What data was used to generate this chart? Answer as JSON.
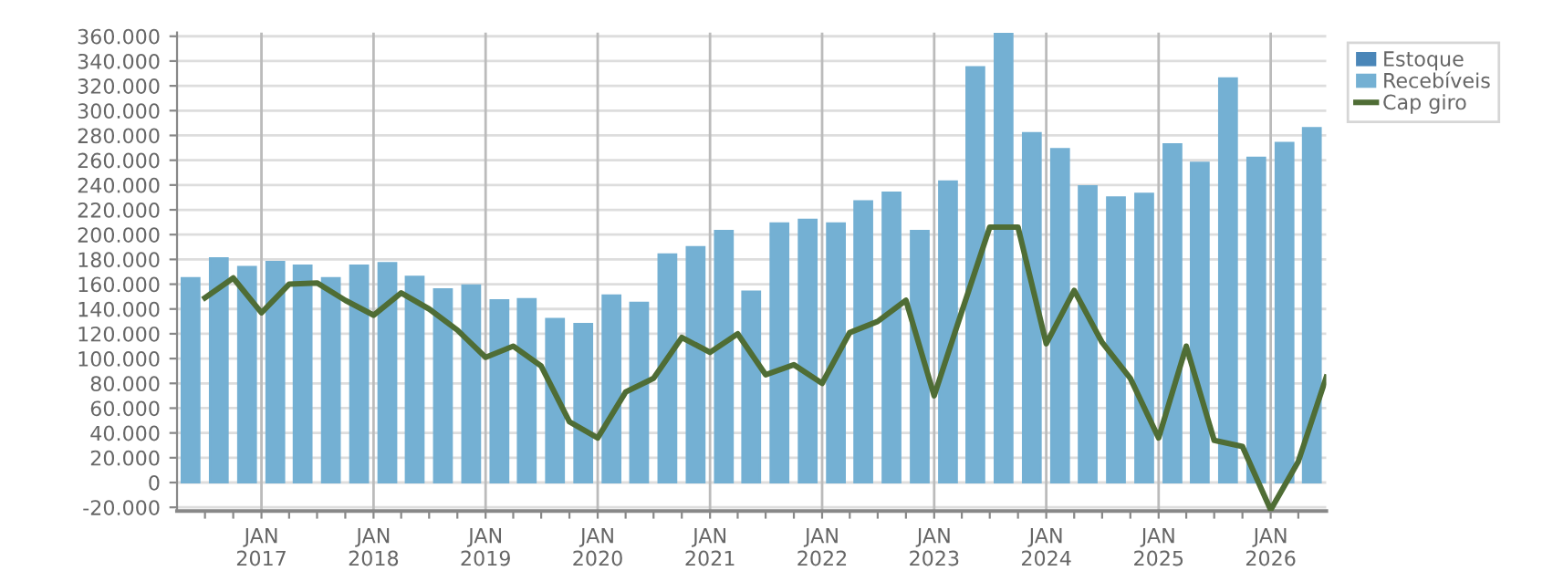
{
  "chart_data": {
    "type": "bar",
    "legend": "top right",
    "grid": true,
    "ylim": [
      -23000,
      363000
    ],
    "yticks": [
      {
        "value": -20000,
        "label": "-20.000"
      },
      {
        "value": 0,
        "label": "0"
      },
      {
        "value": 20000,
        "label": "20.000"
      },
      {
        "value": 40000,
        "label": "40.000"
      },
      {
        "value": 60000,
        "label": "60.000"
      },
      {
        "value": 80000,
        "label": "80.000"
      },
      {
        "value": 100000,
        "label": "100.000"
      },
      {
        "value": 120000,
        "label": "120.000"
      },
      {
        "value": 140000,
        "label": "140.000"
      },
      {
        "value": 160000,
        "label": "160.000"
      },
      {
        "value": 180000,
        "label": "180.000"
      },
      {
        "value": 200000,
        "label": "200.000"
      },
      {
        "value": 220000,
        "label": "220.000"
      },
      {
        "value": 240000,
        "label": "240.000"
      },
      {
        "value": 260000,
        "label": "260.000"
      },
      {
        "value": 280000,
        "label": "280.000"
      },
      {
        "value": 300000,
        "label": "300.000"
      },
      {
        "value": 320000,
        "label": "320.000"
      },
      {
        "value": 340000,
        "label": "340.000"
      },
      {
        "value": 360000,
        "label": "360.000"
      }
    ],
    "xlim": [
      "2016-04-01",
      "2026-07-01"
    ],
    "xticks": [
      {
        "value": "2016-07-01",
        "label": null
      },
      {
        "value": "2016-10-01",
        "label": null
      },
      {
        "value": "2017-01-01",
        "label": "JAN\n2017"
      },
      {
        "value": "2017-04-01",
        "label": null
      },
      {
        "value": "2017-07-01",
        "label": null
      },
      {
        "value": "2017-10-01",
        "label": null
      },
      {
        "value": "2018-01-01",
        "label": "JAN\n2018"
      },
      {
        "value": "2018-04-01",
        "label": null
      },
      {
        "value": "2018-07-01",
        "label": null
      },
      {
        "value": "2018-10-01",
        "label": null
      },
      {
        "value": "2019-01-01",
        "label": "JAN\n2019"
      },
      {
        "value": "2019-04-01",
        "label": null
      },
      {
        "value": "2019-07-01",
        "label": null
      },
      {
        "value": "2019-10-01",
        "label": null
      },
      {
        "value": "2020-01-01",
        "label": "JAN\n2020"
      },
      {
        "value": "2020-04-01",
        "label": null
      },
      {
        "value": "2020-07-01",
        "label": null
      },
      {
        "value": "2020-10-01",
        "label": null
      },
      {
        "value": "2021-01-01",
        "label": "JAN\n2021"
      },
      {
        "value": "2021-04-01",
        "label": null
      },
      {
        "value": "2021-07-01",
        "label": null
      },
      {
        "value": "2021-10-01",
        "label": null
      },
      {
        "value": "2022-01-01",
        "label": "JAN\n2022"
      },
      {
        "value": "2022-04-01",
        "label": null
      },
      {
        "value": "2022-07-01",
        "label": null
      },
      {
        "value": "2022-10-01",
        "label": null
      },
      {
        "value": "2023-01-01",
        "label": "JAN\n2023"
      },
      {
        "value": "2023-04-01",
        "label": null
      },
      {
        "value": "2023-07-01",
        "label": null
      },
      {
        "value": "2023-10-01",
        "label": null
      },
      {
        "value": "2024-01-01",
        "label": "JAN\n2024"
      },
      {
        "value": "2024-04-01",
        "label": null
      },
      {
        "value": "2024-07-01",
        "label": null
      },
      {
        "value": "2024-10-01",
        "label": null
      },
      {
        "value": "2025-01-01",
        "label": "JAN\n2025"
      },
      {
        "value": "2025-04-01",
        "label": null
      },
      {
        "value": "2025-07-01",
        "label": null
      },
      {
        "value": "2025-10-01",
        "label": null
      },
      {
        "value": "2026-01-01",
        "label": "JAN\n2026"
      },
      {
        "value": "2026-04-01",
        "label": null
      }
    ],
    "series": [
      {
        "name": "Estoque",
        "color": "#4a86b8",
        "x": [
          "2016-05-15",
          "2016-08-15",
          "2016-11-15",
          "2017-02-15",
          "2017-05-15",
          "2017-08-15",
          "2017-11-15",
          "2018-02-15",
          "2018-05-15",
          "2018-08-15",
          "2018-11-15",
          "2019-02-15",
          "2019-05-15",
          "2019-08-15",
          "2019-11-15",
          "2020-02-15",
          "2020-05-15",
          "2020-08-15",
          "2020-11-15",
          "2021-02-15",
          "2021-05-15",
          "2021-08-15",
          "2021-11-15",
          "2022-02-15",
          "2022-05-15",
          "2022-08-15",
          "2022-11-15",
          "2023-02-15",
          "2023-05-15",
          "2023-08-15",
          "2023-11-15",
          "2024-02-15",
          "2024-05-15",
          "2024-08-15",
          "2024-11-15",
          "2025-02-15",
          "2025-05-15",
          "2025-08-15",
          "2025-11-15",
          "2026-02-15",
          "2026-05-15"
        ],
        "values": [
          0,
          0,
          0,
          0,
          0,
          0,
          0,
          0,
          0,
          0,
          0,
          0,
          0,
          0,
          0,
          0,
          0,
          0,
          0,
          0,
          0,
          0,
          0,
          0,
          0,
          0,
          0,
          0,
          0,
          0,
          0,
          0,
          0,
          0,
          0,
          0,
          0,
          0,
          0,
          0,
          0
        ]
      },
      {
        "name": "Recebíveis",
        "color": "#74b0d3",
        "x": [
          "2016-05-15",
          "2016-08-15",
          "2016-11-15",
          "2017-02-15",
          "2017-05-15",
          "2017-08-15",
          "2017-11-15",
          "2018-02-15",
          "2018-05-15",
          "2018-08-15",
          "2018-11-15",
          "2019-02-15",
          "2019-05-15",
          "2019-08-15",
          "2019-11-15",
          "2020-02-15",
          "2020-05-15",
          "2020-08-15",
          "2020-11-15",
          "2021-02-15",
          "2021-05-15",
          "2021-08-15",
          "2021-11-15",
          "2022-02-15",
          "2022-05-15",
          "2022-08-15",
          "2022-11-15",
          "2023-02-15",
          "2023-05-15",
          "2023-08-15",
          "2023-11-15",
          "2024-02-15",
          "2024-05-15",
          "2024-08-15",
          "2024-11-15",
          "2025-02-15",
          "2025-05-15",
          "2025-08-15",
          "2025-11-15",
          "2026-02-15",
          "2026-05-15"
        ],
        "values": [
          165000,
          181000,
          174000,
          178000,
          175000,
          165000,
          175000,
          177000,
          166000,
          156000,
          159000,
          147000,
          148000,
          132000,
          128000,
          151000,
          145000,
          184000,
          190000,
          203000,
          154000,
          209000,
          212000,
          209000,
          227000,
          234000,
          203000,
          243000,
          335000,
          362000,
          282000,
          269000,
          239000,
          230000,
          233000,
          273000,
          258000,
          326000,
          262000,
          274000,
          286000
        ]
      },
      {
        "name": "Cap giro",
        "type": "line",
        "color": "#4f6d35",
        "x": [
          "2016-07-01",
          "2016-10-01",
          "2017-01-01",
          "2017-04-01",
          "2017-07-01",
          "2017-10-01",
          "2018-01-01",
          "2018-04-01",
          "2018-07-01",
          "2018-10-01",
          "2019-01-01",
          "2019-04-01",
          "2019-07-01",
          "2019-10-01",
          "2020-01-01",
          "2020-04-01",
          "2020-07-01",
          "2020-10-01",
          "2021-01-01",
          "2021-04-01",
          "2021-07-01",
          "2021-10-01",
          "2022-01-01",
          "2022-04-01",
          "2022-07-01",
          "2022-10-01",
          "2023-01-01",
          "2023-04-01",
          "2023-07-01",
          "2023-10-01",
          "2024-01-01",
          "2024-04-01",
          "2024-07-01",
          "2024-10-01",
          "2025-01-01",
          "2025-04-01",
          "2025-07-01",
          "2025-10-01",
          "2026-01-01",
          "2026-04-01",
          "2026-07-01"
        ],
        "values": [
          149000,
          165000,
          137000,
          160000,
          161000,
          147000,
          135000,
          153000,
          140000,
          123000,
          101000,
          110000,
          94000,
          49000,
          36000,
          73000,
          84000,
          117000,
          105000,
          120000,
          87000,
          95000,
          80000,
          121000,
          130000,
          147000,
          70000,
          138000,
          206000,
          206000,
          112000,
          155000,
          113000,
          84000,
          36000,
          110000,
          34000,
          29000,
          -22000,
          17000,
          85000
        ]
      }
    ]
  }
}
